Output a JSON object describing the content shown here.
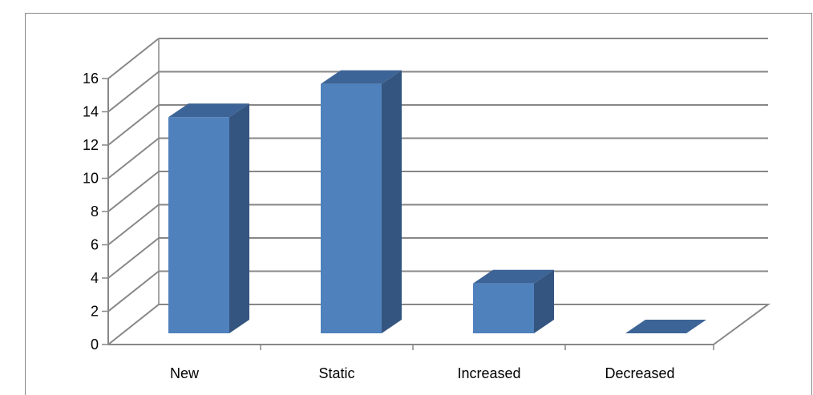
{
  "chart_data": {
    "type": "bar",
    "style": "3d-column",
    "categories": [
      "New",
      "Static",
      "Increased",
      "Decreased"
    ],
    "values": [
      13,
      15,
      3,
      0
    ],
    "ylim": [
      0,
      16
    ],
    "yticks": [
      "0",
      "2",
      "4",
      "6",
      "8",
      "10",
      "12",
      "14",
      "16"
    ],
    "title": "",
    "xlabel": "",
    "ylabel": "",
    "grid": true,
    "legend": "none",
    "colors": {
      "bar_front": "#4f81bd",
      "bar_side": "#34557f",
      "bar_top": "#3d6496",
      "gridline": "#878787"
    }
  }
}
